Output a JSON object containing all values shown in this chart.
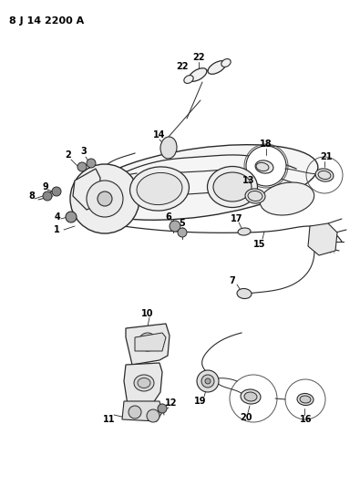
{
  "title": "8 J 14 2200 A",
  "bg": "#ffffff",
  "lc": "#2a2a2a",
  "tc": "#000000",
  "fig_w": 3.95,
  "fig_h": 5.33,
  "dpi": 100
}
